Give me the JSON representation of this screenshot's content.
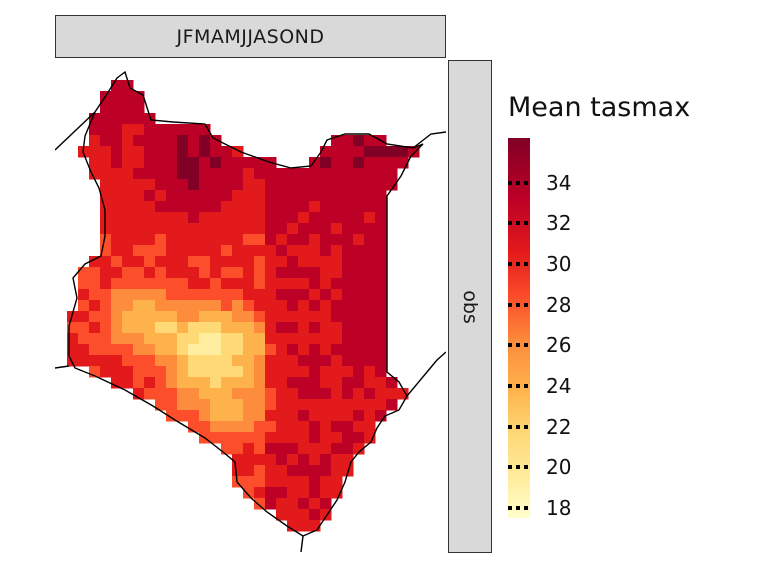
{
  "facet": {
    "column_label": "JFMAMJJASOND",
    "row_label": "obs"
  },
  "legend": {
    "title": "Mean tasmax",
    "ticks": [
      "34",
      "32",
      "30",
      "28",
      "26",
      "24",
      "22",
      "20",
      "18"
    ],
    "range": [
      17.5,
      36.2
    ],
    "colors": [
      "#ffffcc",
      "#ffeda0",
      "#fed976",
      "#feb24c",
      "#fd8d3c",
      "#fc4e2a",
      "#e31a1c",
      "#bd0026",
      "#800026"
    ]
  }
}
